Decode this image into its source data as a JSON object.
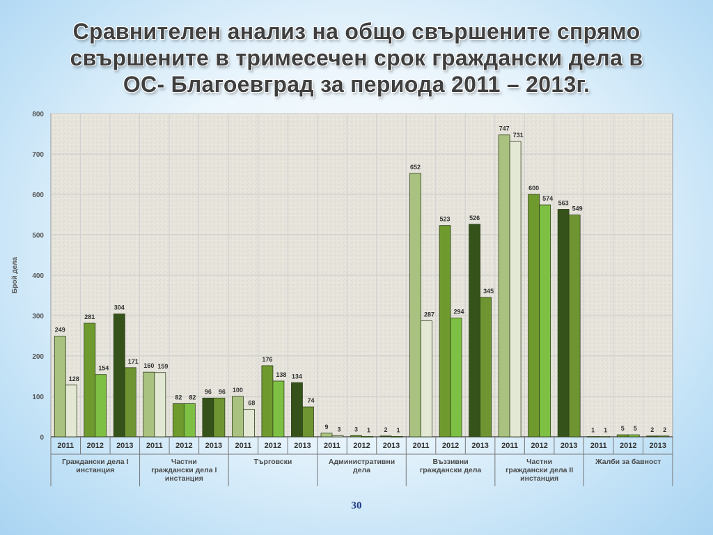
{
  "title_lines": [
    "Сравнителен анализ на общо свършените спрямо",
    "свършените в тримесечен срок граждански дела в",
    "ОС- Благоевград  за периода 2011 – 2013г."
  ],
  "page_number": "30",
  "colors": {
    "total_2011": "#a9c27f",
    "timely_2011": "#e3e8d4",
    "total_2012": "#6f9a2e",
    "timely_2012": "#7ec043",
    "total_2013": "#34521a",
    "timely_2013": "#6e9532",
    "plot_background": "#e7e5dc",
    "grid": "#c9c9c9"
  },
  "chart_data": {
    "type": "bar",
    "title": "Сравнителен анализ на общо свършените спрямо свършените в тримесечен срок граждански дела в ОС- Благоевград  за периода 2011 – 2013г.",
    "ylabel": "Брой дела",
    "xlabel": "",
    "ylim": [
      0,
      800
    ],
    "yticks": [
      0,
      100,
      200,
      300,
      400,
      500,
      600,
      700,
      800
    ],
    "grid": true,
    "legend": "none",
    "year_labels": [
      "2011",
      "2012",
      "2013"
    ],
    "groups": [
      {
        "label": "Граждански дела I инстанция",
        "label_lines": [
          "Граждански дела I",
          "инстанция"
        ],
        "years": [
          {
            "year": "2011",
            "total": 249,
            "timely": 128
          },
          {
            "year": "2012",
            "total": 281,
            "timely": 154
          },
          {
            "year": "2013",
            "total": 304,
            "timely": 171
          }
        ]
      },
      {
        "label": "Частни граждански дела I инстанция",
        "label_lines": [
          "Частни",
          "граждански дела I",
          "инстанция"
        ],
        "years": [
          {
            "year": "2011",
            "total": 160,
            "timely": 159
          },
          {
            "year": "2012",
            "total": 82,
            "timely": 82
          },
          {
            "year": "2013",
            "total": 96,
            "timely": 96
          }
        ]
      },
      {
        "label": "Търговски",
        "label_lines": [
          "Търговски"
        ],
        "years": [
          {
            "year": "2011",
            "total": 100,
            "timely": 68
          },
          {
            "year": "2012",
            "total": 176,
            "timely": 138
          },
          {
            "year": "2013",
            "total": 134,
            "timely": 74
          }
        ]
      },
      {
        "label": "Административни дела",
        "label_lines": [
          "Административни",
          "дела"
        ],
        "years": [
          {
            "year": "2011",
            "total": 9,
            "timely": 3
          },
          {
            "year": "2012",
            "total": 3,
            "timely": 1
          },
          {
            "year": "2013",
            "total": 2,
            "timely": 1
          }
        ]
      },
      {
        "label": "Въззивни граждански дела",
        "label_lines": [
          "Въззивни",
          "граждански дела"
        ],
        "years": [
          {
            "year": "2011",
            "total": 652,
            "timely": 287
          },
          {
            "year": "2012",
            "total": 523,
            "timely": 294
          },
          {
            "year": "2013",
            "total": 526,
            "timely": 345
          }
        ]
      },
      {
        "label": "Частни граждански дела II инстанция",
        "label_lines": [
          "Частни",
          "граждански дела II",
          "инстанция"
        ],
        "years": [
          {
            "year": "2011",
            "total": 747,
            "timely": 731
          },
          {
            "year": "2012",
            "total": 600,
            "timely": 574
          },
          {
            "year": "2013",
            "total": 563,
            "timely": 549
          }
        ]
      },
      {
        "label": "Жалби за бавност",
        "label_lines": [
          "Жалби за бавност"
        ],
        "years": [
          {
            "year": "2011",
            "total": 1,
            "timely": 1
          },
          {
            "year": "2012",
            "total": 5,
            "timely": 5
          },
          {
            "year": "2013",
            "total": 2,
            "timely": 2
          }
        ]
      }
    ]
  }
}
